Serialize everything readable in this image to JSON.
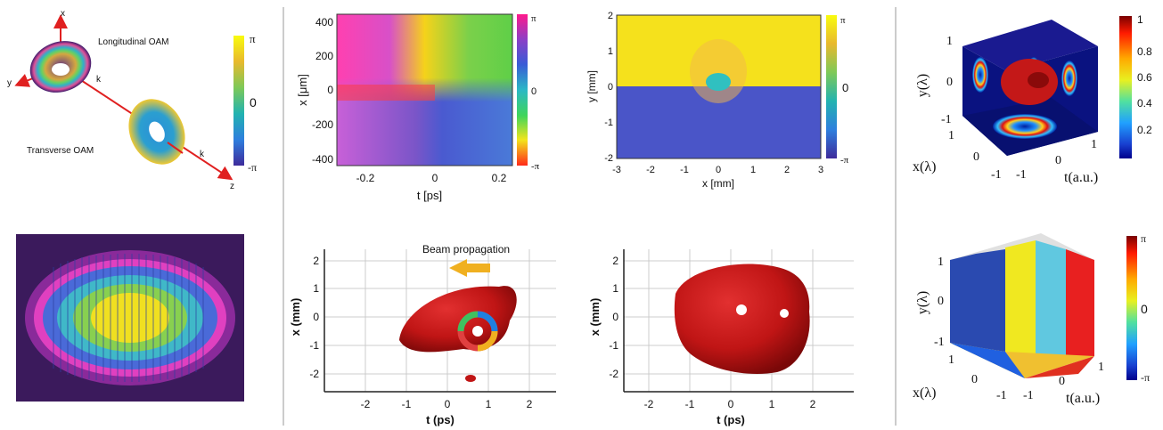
{
  "oam_diagram": {
    "axis_x": "x",
    "axis_y": "y",
    "axis_z": "z",
    "k1": "k",
    "k2": "k",
    "longitudinal": "Longitudinal OAM",
    "transverse": "Transverse OAM",
    "cbar_top": "π",
    "cbar_mid": "0",
    "cbar_bottom": "-π"
  },
  "phase_map_ps": {
    "ylabel": "x [μm]",
    "xlabel": "t [ps]",
    "yticks": [
      "400",
      "200",
      "0",
      "-200",
      "-400"
    ],
    "xticks": [
      "-0.2",
      "0",
      "0.2"
    ],
    "cbar_top": "π",
    "cbar_mid": "0",
    "cbar_bottom": "-π"
  },
  "phase_map_mm": {
    "ylabel": "y [mm]",
    "xlabel": "x [mm]",
    "yticks": [
      "2",
      "1",
      "0",
      "-1",
      "-2"
    ],
    "xticks": [
      "-3",
      "-2",
      "-1",
      "0",
      "1",
      "2",
      "3"
    ],
    "cbar_top": "π",
    "cbar_mid": "0",
    "cbar_bottom": "-π"
  },
  "cube_intensity": {
    "ylabel": "y(λ)",
    "xlabel": "x(λ)",
    "tlabel": "t(a.u.)",
    "y_ticks": [
      "1",
      "0",
      "-1"
    ],
    "x_ticks": [
      "1",
      "0",
      "-1"
    ],
    "t_ticks": [
      "-1",
      "0",
      "1"
    ],
    "cbar_ticks": [
      "1",
      "0.8",
      "0.6",
      "0.4",
      "0.2"
    ]
  },
  "cube_phase": {
    "ylabel": "y(λ)",
    "xlabel": "x(λ)",
    "tlabel": "t(a.u.)",
    "y_ticks": [
      "1",
      "0",
      "-1"
    ],
    "x_ticks": [
      "1",
      "0",
      "-1"
    ],
    "t_ticks": [
      "-1",
      "0",
      "1"
    ],
    "cbar_ticks": [
      "π",
      "0",
      "-π"
    ]
  },
  "iso_left": {
    "annotation": "Beam propagation",
    "ylabel": "x (mm)",
    "xlabel": "t (ps)",
    "yticks": [
      "2",
      "1",
      "0",
      "-1",
      "-2"
    ],
    "xticks": [
      "-2",
      "-1",
      "0",
      "1",
      "2"
    ]
  },
  "iso_right": {
    "ylabel": "x (mm)",
    "xlabel": "t (ps)",
    "yticks": [
      "2",
      "1",
      "0",
      "-1",
      "-2"
    ],
    "xticks": [
      "-2",
      "-1",
      "0",
      "1",
      "2"
    ]
  }
}
